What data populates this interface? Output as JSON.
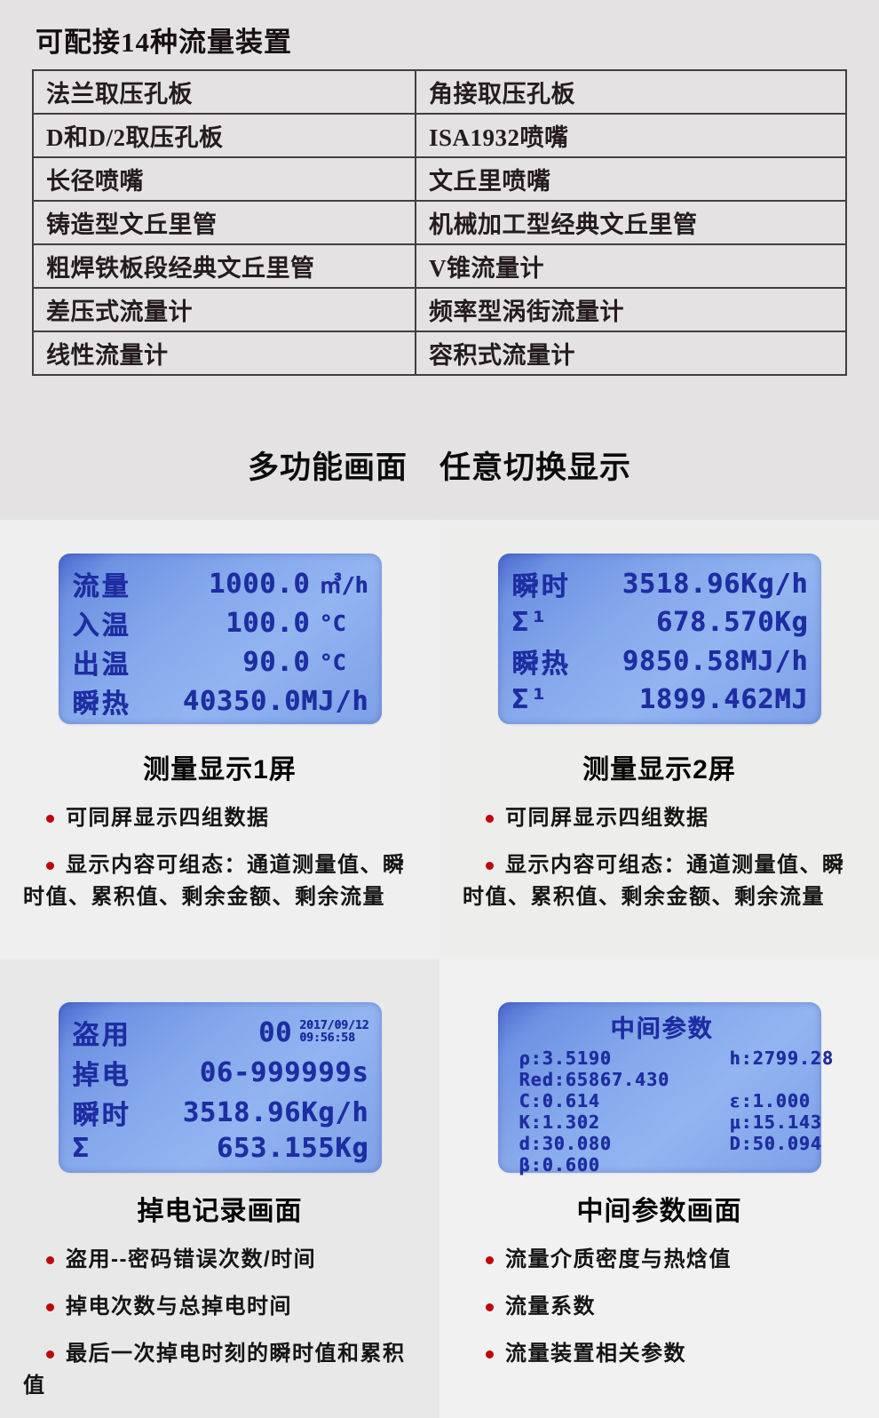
{
  "page": {
    "title": "可配接14种流量装置",
    "section_heading": "多功能画面　任意切换显示"
  },
  "colors": {
    "page_bg": "#e4e2e3",
    "table_border": "#453e3e",
    "lcd_text": "#1e2da1",
    "lcd_screen_blue": "#86a9ec",
    "bullet_dot_red": "#c1000a"
  },
  "device_table": {
    "rows": [
      [
        "法兰取压孔板",
        "角接取压孔板"
      ],
      [
        "D和D/2取压孔板",
        "ISA1932喷嘴"
      ],
      [
        "长径喷嘴",
        "文丘里喷嘴"
      ],
      [
        "铸造型文丘里管",
        "机械加工型经典文丘里管"
      ],
      [
        "粗焊铁板段经典文丘里管",
        "V锥流量计"
      ],
      [
        "差压式流量计",
        "频率型涡街流量计"
      ],
      [
        "线性流量计",
        "容积式流量计"
      ]
    ]
  },
  "panels": [
    {
      "caption": "测量显示1屏",
      "bullets": [
        "可同屏显示四组数据",
        "显示内容可组态：通道测量值、瞬时值、累积值、剩余金额、剩余流量"
      ],
      "screen": {
        "rows": [
          {
            "label": "流量",
            "value": "1000.0",
            "unit": "㎥/h"
          },
          {
            "label": "入温",
            "value": "100.0",
            "unit": "°C"
          },
          {
            "label": "出温",
            "value": "90.0",
            "unit": "°C"
          },
          {
            "label": "瞬热",
            "value": "40350.0MJ/h",
            "unit": ""
          }
        ]
      }
    },
    {
      "caption": "测量显示2屏",
      "bullets": [
        "可同屏显示四组数据",
        "显示内容可组态：通道测量值、瞬时值、累积值、剩余金额、剩余流量"
      ],
      "screen": {
        "rows": [
          {
            "label": "瞬时",
            "value": "3518.96Kg/h"
          },
          {
            "label": "Σ¹",
            "value": "678.570Kg"
          },
          {
            "label": "瞬热",
            "value": "9850.58MJ/h"
          },
          {
            "label": "Σ¹",
            "value": "1899.462MJ"
          }
        ]
      }
    },
    {
      "caption": "掉电记录画面",
      "bullets": [
        "盗用--密码错误次数/时间",
        "掉电次数与总掉电时间",
        "最后一次掉电时刻的瞬时值和累积值"
      ],
      "screen": {
        "rows": [
          {
            "label": "盗用",
            "value": "00",
            "date": "2017/09/12",
            "time": "09:56:58"
          },
          {
            "label": "掉电",
            "value": "06-999999s"
          },
          {
            "label": "瞬时",
            "value": "3518.96Kg/h"
          },
          {
            "label": "Σ",
            "value": "653.155Kg"
          }
        ]
      }
    },
    {
      "caption": "中间参数画面",
      "bullets": [
        "流量介质密度与热焓值",
        "流量系数",
        "流量装置相关参数"
      ],
      "screen": {
        "title": "中间参数",
        "lines": [
          {
            "left": "ρ:3.5190",
            "right": "h:2799.28"
          },
          {
            "left": "Red:65867.430",
            "right": ""
          },
          {
            "left": "C:0.614",
            "right": "ε:1.000"
          },
          {
            "left": "K:1.302",
            "right": "μ:15.143"
          },
          {
            "left": "d:30.080",
            "right": "D:50.094"
          },
          {
            "left": "β:0.600",
            "right": ""
          }
        ]
      }
    }
  ]
}
